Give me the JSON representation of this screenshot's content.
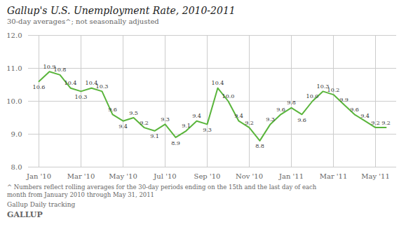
{
  "chart_data": {
    "type": "line",
    "title": "Gallup's U.S. Unemployment Rate, 2010-2011",
    "subtitle": "30-day averages^; not seasonally adjusted",
    "annotations": [
      "^ Numbers reflect rolling averages for the 30-day periods ending on the 15th and the last day of each\nmonth from January 2010 through May 31, 2011",
      "Gallup Daily tracking",
      "GALLUP"
    ],
    "categories": [
      "Jan '10",
      null,
      null,
      null,
      "Mar '10",
      null,
      null,
      null,
      "May '10",
      null,
      null,
      null,
      "Jul '10",
      null,
      null,
      null,
      "Sep '10",
      null,
      null,
      null,
      "Nov '10",
      null,
      null,
      null,
      "Jan '11",
      null,
      null,
      null,
      "Mar '11",
      null,
      null,
      null,
      "May '11",
      null
    ],
    "values": [
      10.6,
      10.9,
      10.8,
      10.4,
      10.3,
      10.4,
      10.3,
      9.6,
      9.4,
      9.5,
      9.2,
      9.1,
      9.3,
      8.9,
      9.1,
      9.4,
      9.3,
      10.4,
      10.0,
      9.4,
      9.2,
      8.8,
      9.3,
      9.6,
      9.8,
      9.6,
      10.0,
      10.3,
      10.2,
      9.9,
      9.6,
      9.4,
      9.2,
      9.2
    ],
    "value_labels": [
      "10.6",
      "10.9",
      "10.8",
      "10.4",
      "10.3",
      "10.4",
      "10.3",
      "9.6",
      "9.4",
      "9.5",
      "9.2",
      "9.1",
      "9.3",
      "8.9",
      "9.1",
      "9.4",
      "9.3",
      "10.4",
      "10.0",
      "9.4",
      "9.2",
      "8.8",
      "9.3",
      "9.6",
      "9.8",
      "9.6",
      "10.0",
      "10.3",
      "10.2",
      "9.9",
      "9.6",
      "9.4",
      "9.2",
      "9.2"
    ],
    "color": "#5ab53c",
    "ylim": [
      8,
      12
    ],
    "yticks": [
      8,
      9,
      10,
      11,
      12
    ],
    "grid": true,
    "data_labels": true
  }
}
